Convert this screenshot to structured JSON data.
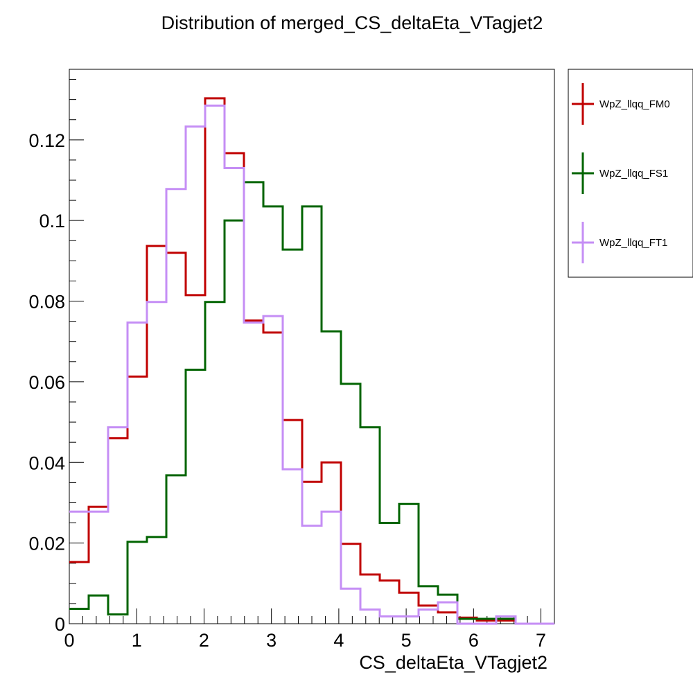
{
  "chart_data": {
    "type": "line",
    "title": "Distribution of merged_CS_deltaEta_VTagjet2",
    "xlabel": "CS_deltaEta_VTagjet2",
    "ylabel": "",
    "xlim": [
      0,
      7.2
    ],
    "ylim": [
      0,
      0.1375
    ],
    "bin_width": 0.288,
    "grid": false,
    "legend_position": "top-right, outside plot",
    "x_ticks": [
      "0",
      "1",
      "2",
      "3",
      "4",
      "5",
      "6",
      "7"
    ],
    "y_ticks": [
      "0",
      "0.02",
      "0.04",
      "0.06",
      "0.08",
      "0.1",
      "0.12"
    ],
    "series": [
      {
        "name": "WpZ_llqq_FM0",
        "color": "#c00000",
        "values": [
          0.0153,
          0.029,
          0.046,
          0.0613,
          0.0937,
          0.092,
          0.0815,
          0.1303,
          0.1167,
          0.0752,
          0.0722,
          0.0505,
          0.0352,
          0.04,
          0.0198,
          0.0122,
          0.0107,
          0.0077,
          0.0045,
          0.0028,
          0.0015,
          0.0008,
          0.0008,
          0,
          0
        ]
      },
      {
        "name": "WpZ_llqq_FS1",
        "color": "#006400",
        "values": [
          0.0037,
          0.007,
          0.0023,
          0.0203,
          0.0215,
          0.0368,
          0.063,
          0.0798,
          0.1,
          0.1095,
          0.1035,
          0.0928,
          0.1035,
          0.0725,
          0.0595,
          0.0487,
          0.025,
          0.0297,
          0.0093,
          0.0072,
          0.0012,
          0.0012,
          0.0012,
          0,
          0
        ]
      },
      {
        "name": "WpZ_llqq_FT1",
        "color": "#c58ef5",
        "values": [
          0.0278,
          0.0278,
          0.0487,
          0.0747,
          0.0798,
          0.1078,
          0.1233,
          0.1285,
          0.113,
          0.0747,
          0.0763,
          0.0383,
          0.0243,
          0.0278,
          0.0087,
          0.0035,
          0.0018,
          0.0018,
          0.0035,
          0.0053,
          0,
          0,
          0.0018,
          0,
          0
        ]
      }
    ]
  }
}
